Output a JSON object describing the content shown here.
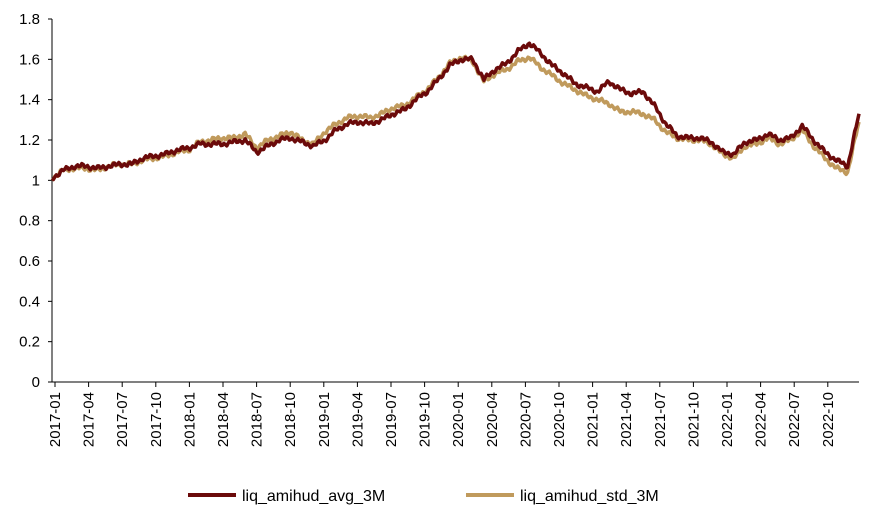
{
  "chart_data": {
    "type": "line",
    "title": "",
    "xlabel": "",
    "ylabel": "",
    "ylim": [
      0,
      1.8
    ],
    "y_ticks": [
      "0",
      "0.2",
      "0.4",
      "0.6",
      "0.8",
      "1",
      "1.2",
      "1.4",
      "1.6",
      "1.8"
    ],
    "x_ticks": [
      "2017-01",
      "2017-04",
      "2017-07",
      "2017-10",
      "2018-01",
      "2018-04",
      "2018-07",
      "2018-10",
      "2019-01",
      "2019-04",
      "2019-07",
      "2019-10",
      "2020-01",
      "2020-04",
      "2020-07",
      "2020-10",
      "2021-01",
      "2021-04",
      "2021-07",
      "2021-10",
      "2022-01",
      "2022-04",
      "2022-07",
      "2022-10"
    ],
    "grid": false,
    "legend_position": "bottom",
    "x": [
      "2017-01",
      "2017-02",
      "2017-03",
      "2017-04",
      "2017-05",
      "2017-06",
      "2017-07",
      "2017-08",
      "2017-09",
      "2017-10",
      "2017-11",
      "2017-12",
      "2018-01",
      "2018-02",
      "2018-03",
      "2018-04",
      "2018-05",
      "2018-06",
      "2018-07",
      "2018-08",
      "2018-09",
      "2018-10",
      "2018-11",
      "2018-12",
      "2019-01",
      "2019-02",
      "2019-03",
      "2019-04",
      "2019-05",
      "2019-06",
      "2019-07",
      "2019-08",
      "2019-09",
      "2019-10",
      "2019-11",
      "2019-12",
      "2020-01",
      "2020-02",
      "2020-03",
      "2020-04",
      "2020-05",
      "2020-06",
      "2020-07",
      "2020-08",
      "2020-09",
      "2020-10",
      "2020-11",
      "2020-12",
      "2021-01",
      "2021-02",
      "2021-03",
      "2021-04",
      "2021-05",
      "2021-06",
      "2021-07",
      "2021-08",
      "2021-09",
      "2021-10",
      "2021-11",
      "2021-12",
      "2022-01",
      "2022-02",
      "2022-03",
      "2022-04",
      "2022-05",
      "2022-06",
      "2022-07",
      "2022-08",
      "2022-09",
      "2022-10",
      "2022-11",
      "2022-12"
    ],
    "series": [
      {
        "name": "liq_amihud_avg_3M",
        "color": "#6b0a0a",
        "values": [
          1.01,
          1.05,
          1.07,
          1.07,
          1.06,
          1.07,
          1.08,
          1.08,
          1.11,
          1.12,
          1.13,
          1.15,
          1.16,
          1.18,
          1.18,
          1.18,
          1.19,
          1.2,
          1.14,
          1.17,
          1.2,
          1.21,
          1.19,
          1.17,
          1.2,
          1.25,
          1.28,
          1.29,
          1.28,
          1.3,
          1.33,
          1.35,
          1.4,
          1.44,
          1.5,
          1.57,
          1.6,
          1.6,
          1.5,
          1.55,
          1.58,
          1.64,
          1.68,
          1.63,
          1.57,
          1.53,
          1.48,
          1.46,
          1.44,
          1.49,
          1.45,
          1.43,
          1.44,
          1.37,
          1.28,
          1.22,
          1.21,
          1.21,
          1.19,
          1.14,
          1.13,
          1.19,
          1.2,
          1.23,
          1.2,
          1.21,
          1.27,
          1.2,
          1.14,
          1.1,
          1.07,
          1.33
        ]
      },
      {
        "name": "liq_amihud_std_3M",
        "color": "#c09a5c",
        "values": [
          1.01,
          1.05,
          1.06,
          1.06,
          1.05,
          1.07,
          1.08,
          1.08,
          1.1,
          1.11,
          1.12,
          1.14,
          1.15,
          1.19,
          1.2,
          1.21,
          1.21,
          1.23,
          1.16,
          1.2,
          1.22,
          1.24,
          1.2,
          1.18,
          1.24,
          1.28,
          1.31,
          1.32,
          1.31,
          1.33,
          1.36,
          1.37,
          1.41,
          1.45,
          1.51,
          1.58,
          1.61,
          1.59,
          1.49,
          1.53,
          1.55,
          1.59,
          1.61,
          1.56,
          1.52,
          1.48,
          1.45,
          1.42,
          1.4,
          1.38,
          1.34,
          1.34,
          1.33,
          1.3,
          1.24,
          1.21,
          1.2,
          1.2,
          1.18,
          1.13,
          1.11,
          1.17,
          1.18,
          1.21,
          1.18,
          1.2,
          1.25,
          1.17,
          1.11,
          1.06,
          1.04,
          1.29
        ]
      }
    ]
  }
}
